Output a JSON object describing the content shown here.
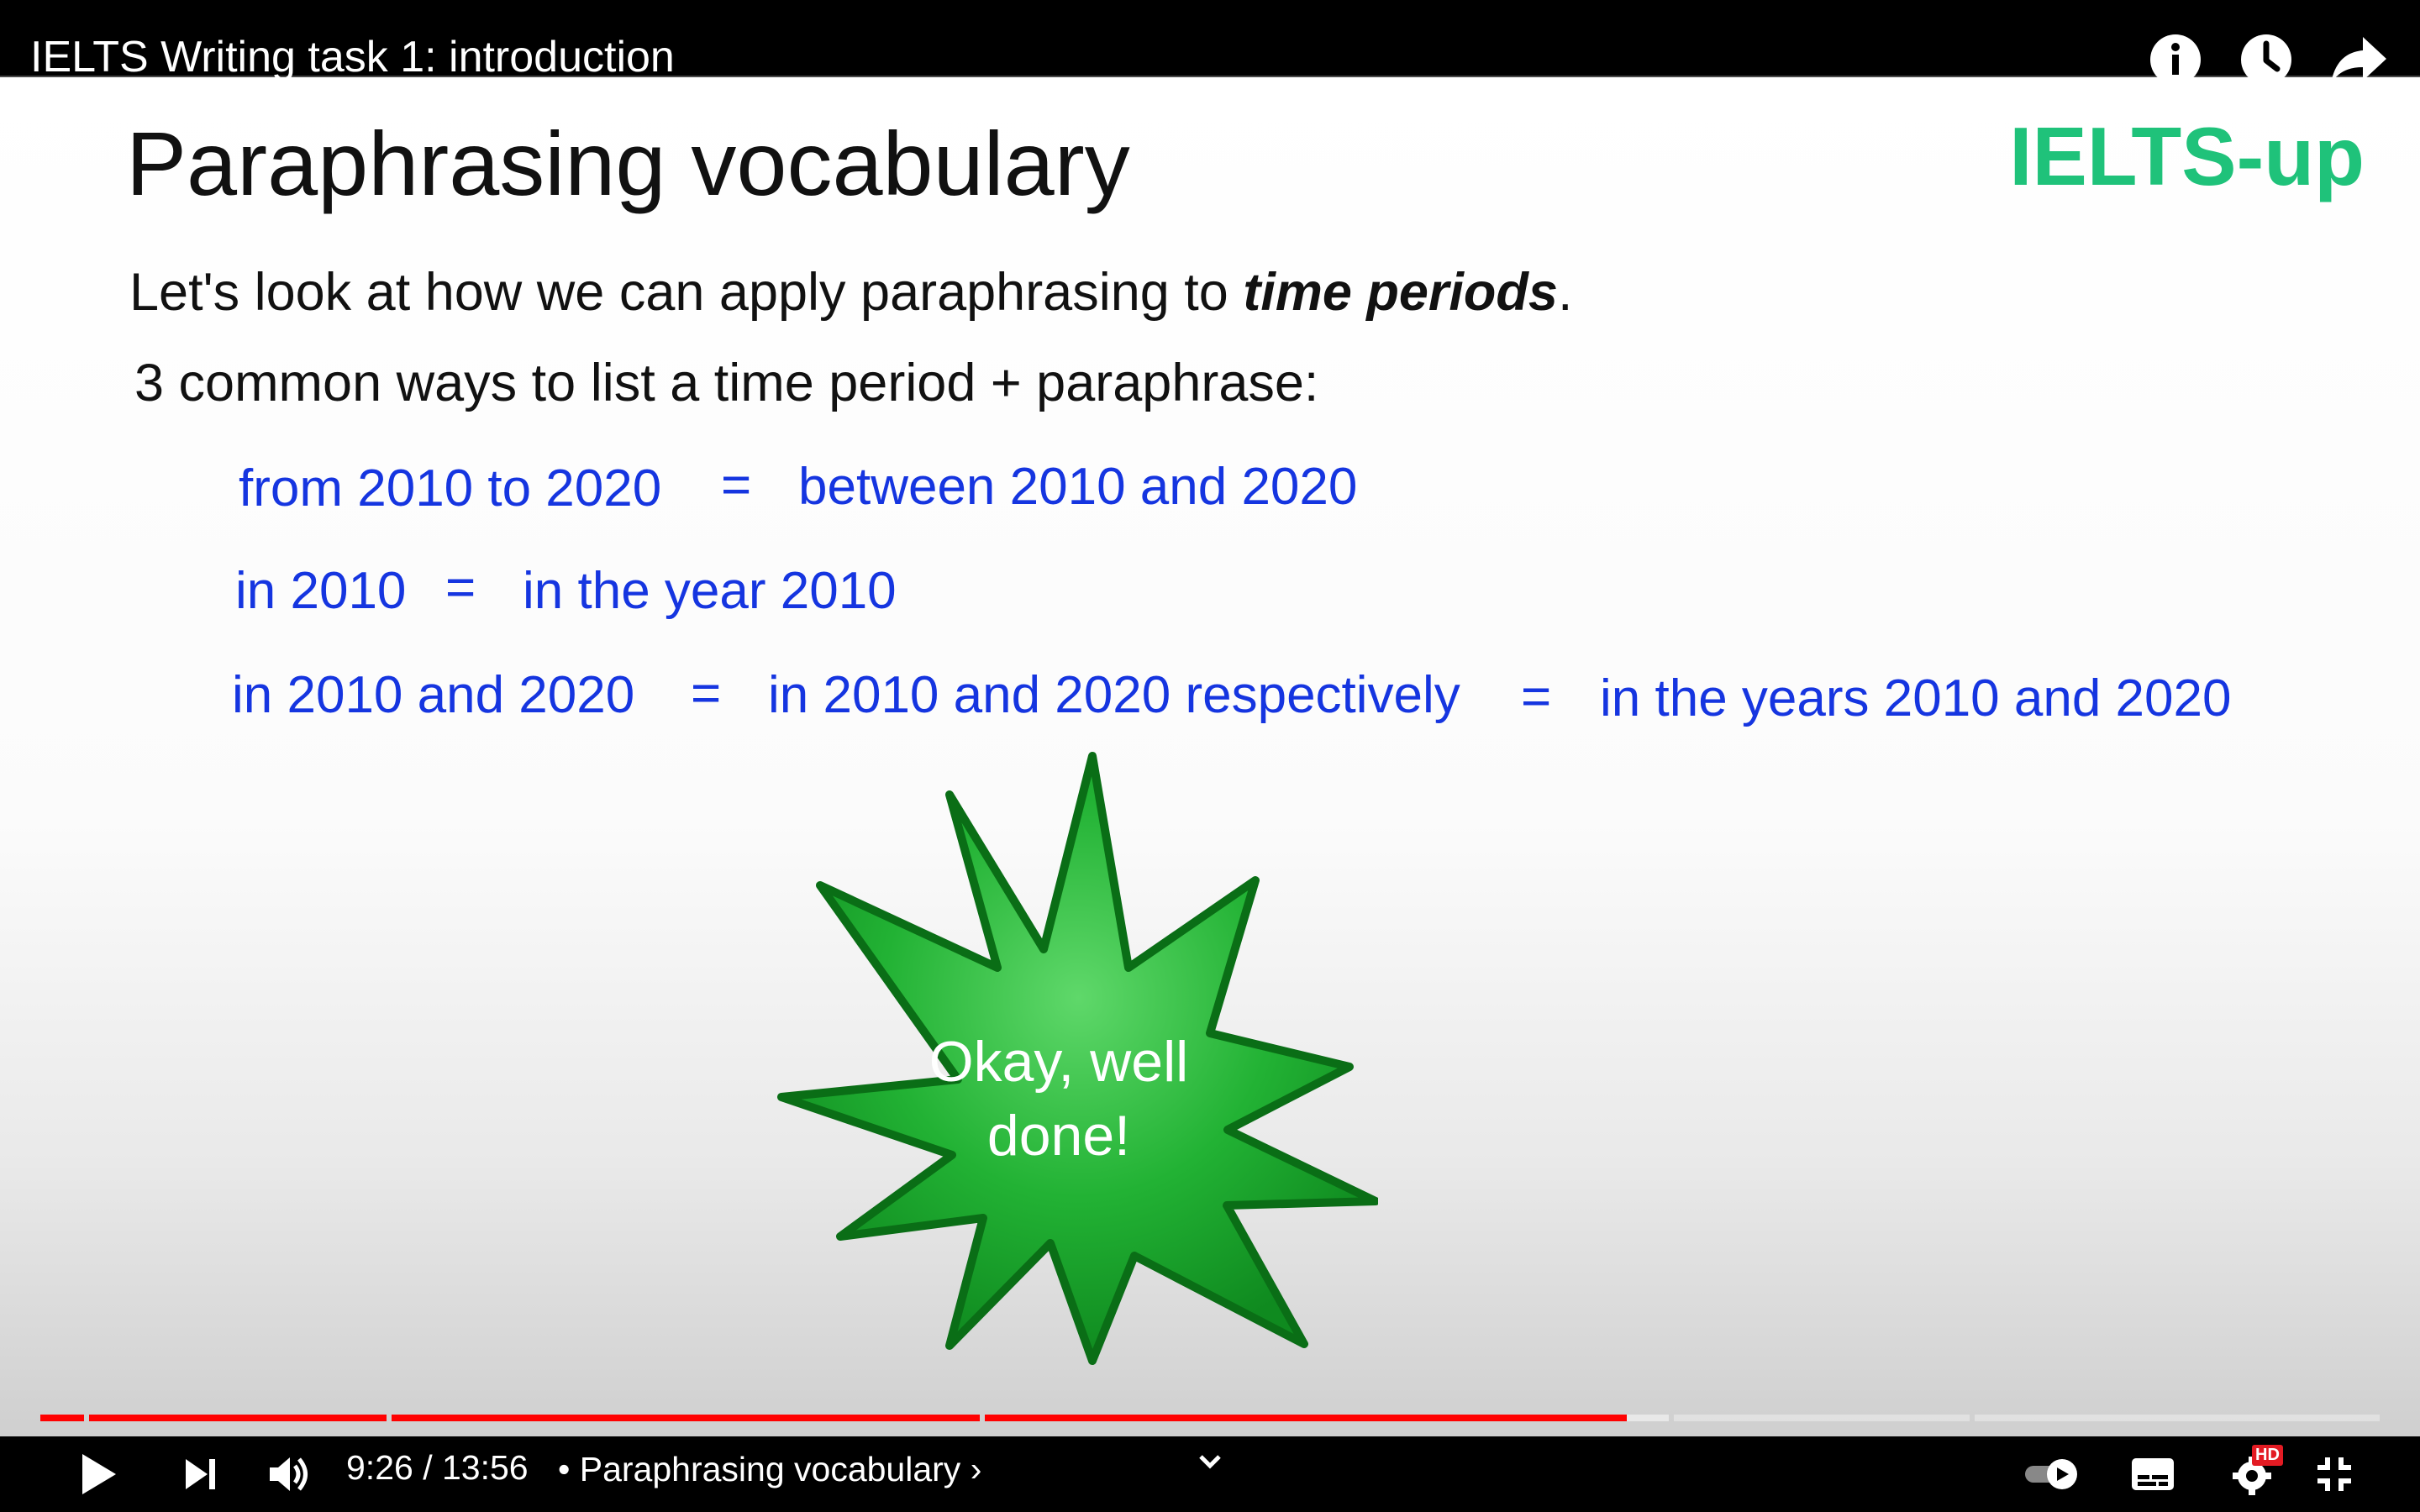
{
  "video": {
    "title": "IELTS Writing task 1: introduction"
  },
  "slide": {
    "heading": "Paraphrasing vocabulary",
    "brand": "IELTS-up",
    "intro_prefix": "Let's look at how we can apply paraphrasing to ",
    "intro_emphasis": "time periods",
    "intro_suffix": ".",
    "ways_line": "3 common ways to list a time period + paraphrase:",
    "equals": "=",
    "row1": {
      "a": "from 2010 to 2020",
      "b": "between 2010 and 2020"
    },
    "row2": {
      "a": "in 2010",
      "b": "in the year 2010"
    },
    "row3": {
      "a": "in 2010 and 2020",
      "b": "in 2010 and 2020 respectively",
      "c": "in the years 2010 and 2020"
    },
    "burst_line1": "Okay, well",
    "burst_line2": "done!"
  },
  "controls": {
    "current_time": "9:26",
    "separator": " / ",
    "duration": "13:56",
    "bullet": " • ",
    "chapter": "Paraphrasing vocabulary",
    "chapter_arrow": "›",
    "quality_badge": "HD",
    "played_fraction": 0.678
  },
  "colors": {
    "brand_green": "#1fc27a",
    "slide_blue": "#1535e0",
    "progress_red": "#ff0000",
    "starburst_green": "#17a52a"
  },
  "icons": {
    "info": "info-icon",
    "watch_later": "clock-icon",
    "share": "share-icon",
    "play": "play-icon",
    "next": "next-icon",
    "volume": "volume-icon",
    "chevron": "chevron-down-icon",
    "autoplay": "autoplay-toggle-icon",
    "subtitles": "subtitles-icon",
    "settings": "gear-icon",
    "exit_fullscreen": "exit-fullscreen-icon"
  }
}
